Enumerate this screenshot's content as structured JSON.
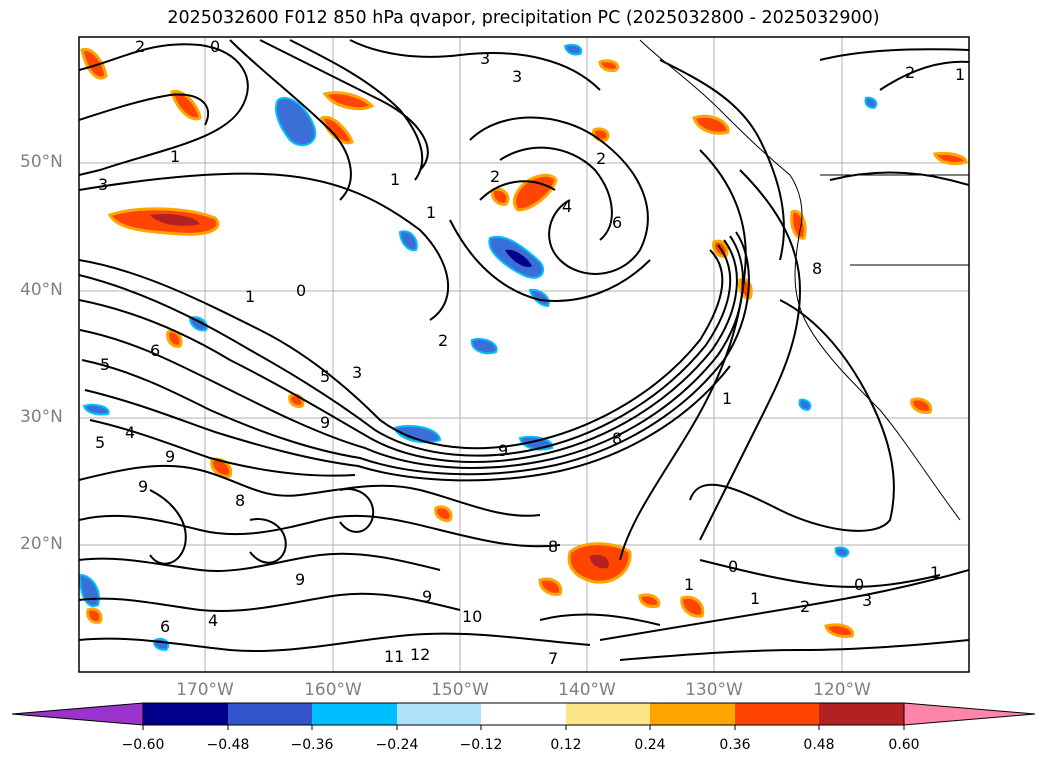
{
  "title": "2025032600 F012 850 hPa qvapor, precipitation PC (2025032800 - 2025032900)",
  "lat_labels": [
    "50°N",
    "40°N",
    "30°N",
    "20°N"
  ],
  "lon_labels": [
    "170°W",
    "160°W",
    "150°W",
    "140°W",
    "130°W",
    "120°W"
  ],
  "colorbar": {
    "tick_labels": [
      "−0.60",
      "−0.48",
      "−0.36",
      "−0.24",
      "−0.12",
      "0.12",
      "0.24",
      "0.36",
      "0.48",
      "0.60"
    ],
    "colors": [
      "#9933cc",
      "#00008b",
      "#3355cc",
      "#00bfff",
      "#aee3fb",
      "#ffffff",
      "#fde68a",
      "#ffa500",
      "#ff4500",
      "#b22222",
      "#ff85a8"
    ]
  },
  "contour_labels": {
    "visible": [
      "2",
      "0",
      "3",
      "3",
      "2",
      "1",
      "1",
      "1",
      "3",
      "1",
      "2",
      "4",
      "6",
      "2",
      "0",
      "1",
      "2",
      "5",
      "3",
      "9",
      "9",
      "8",
      "5",
      "9",
      "8",
      "6",
      "4",
      "5",
      "9",
      "9",
      "10",
      "11",
      "12",
      "4",
      "6",
      "1",
      "8",
      "9",
      "7",
      "0",
      "2",
      "0",
      "1",
      "1",
      "3",
      "1",
      "8"
    ]
  },
  "colors": {
    "gridline": "#b0b0b0",
    "contour": "#000000",
    "neg_fill": "#3a6fd8",
    "neg_core": "#00008b",
    "neg_edge": "#00bfff",
    "pos_fill": "#ff4500",
    "pos_edge": "#ffa500",
    "pos_core": "#b22222"
  }
}
